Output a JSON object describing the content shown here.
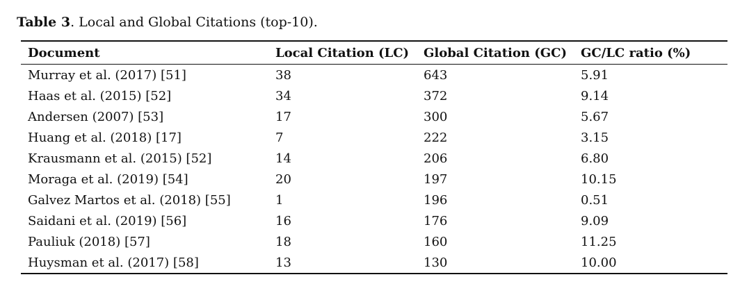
{
  "caption": {
    "label": "Table 3",
    "text": ". Local and Global Citations (top-10)."
  },
  "table": {
    "headers": [
      "Document",
      "Local Citation (LC)",
      "Global Citation (GC)",
      "GC/LC ratio (%)"
    ],
    "rows": [
      [
        "Murray et al. (2017) [51]",
        "38",
        "643",
        "5.91"
      ],
      [
        "Haas et al. (2015) [52]",
        "34",
        "372",
        "9.14"
      ],
      [
        "Andersen (2007) [53]",
        "17",
        "300",
        "5.67"
      ],
      [
        "Huang et al. (2018) [17]",
        "7",
        "222",
        "3.15"
      ],
      [
        "Krausmann et al. (2015) [52]",
        "14",
        "206",
        "6.80"
      ],
      [
        "Moraga et al. (2019) [54]",
        "20",
        "197",
        "10.15"
      ],
      [
        "Galvez Martos et al. (2018) [55]",
        "1",
        "196",
        "0.51"
      ],
      [
        "Saidani et al. (2019) [56]",
        "16",
        "176",
        "9.09"
      ],
      [
        "Pauliuk (2018) [57]",
        "18",
        "160",
        "11.25"
      ],
      [
        "Huysman et al. (2017) [58]",
        "13",
        "130",
        "10.00"
      ]
    ]
  }
}
